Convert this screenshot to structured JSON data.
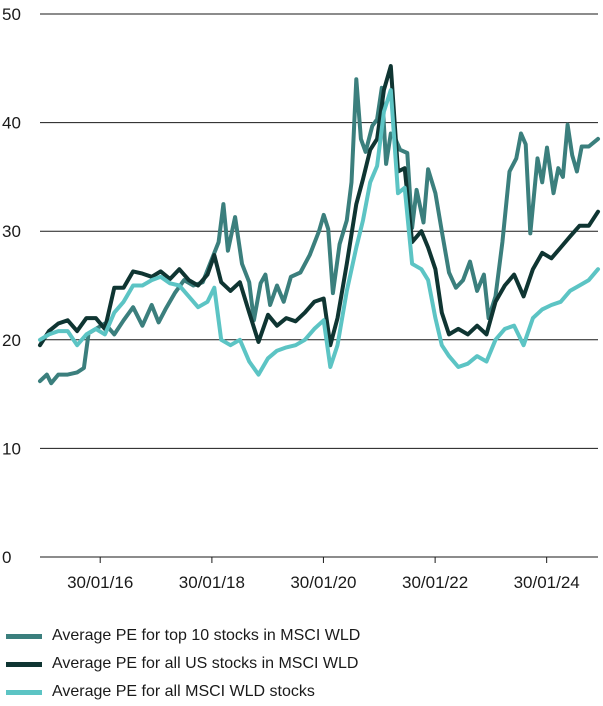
{
  "chart_data": {
    "type": "line",
    "title": "",
    "xlabel": "",
    "ylabel": "",
    "ylim": [
      0,
      50
    ],
    "yticks": [
      0,
      10,
      20,
      30,
      40,
      50
    ],
    "xlim": [
      "2015-01-01",
      "2024-12-31"
    ],
    "xticks": [
      {
        "label": "30/01/16",
        "date": "2016-01-30"
      },
      {
        "label": "30/01/18",
        "date": "2018-01-30"
      },
      {
        "label": "30/01/20",
        "date": "2020-01-30"
      },
      {
        "label": "30/01/22",
        "date": "2022-01-30"
      },
      {
        "label": "30/01/24",
        "date": "2024-01-30"
      }
    ],
    "grid": "horizontal",
    "legend_position": "bottom",
    "series": [
      {
        "name": "Average PE for top 10 stocks in MSCI WLD",
        "color": "#3b7f7d",
        "points": [
          [
            "2015-01-01",
            16.2
          ],
          [
            "2015-02-15",
            16.8
          ],
          [
            "2015-03-15",
            16.0
          ],
          [
            "2015-05-01",
            16.8
          ],
          [
            "2015-07-01",
            16.8
          ],
          [
            "2015-09-01",
            17.0
          ],
          [
            "2015-10-15",
            17.4
          ],
          [
            "2015-11-15",
            20.6
          ],
          [
            "2016-01-01",
            21.0
          ],
          [
            "2016-03-01",
            21.5
          ],
          [
            "2016-05-01",
            20.5
          ],
          [
            "2016-07-01",
            21.8
          ],
          [
            "2016-09-01",
            23.0
          ],
          [
            "2016-11-01",
            21.3
          ],
          [
            "2017-01-01",
            23.2
          ],
          [
            "2017-02-15",
            21.6
          ],
          [
            "2017-04-01",
            22.8
          ],
          [
            "2017-06-01",
            24.3
          ],
          [
            "2017-08-01",
            25.5
          ],
          [
            "2017-10-01",
            25.0
          ],
          [
            "2017-12-01",
            25.3
          ],
          [
            "2018-02-01",
            27.5
          ],
          [
            "2018-03-15",
            29.0
          ],
          [
            "2018-04-15",
            32.5
          ],
          [
            "2018-05-15",
            28.2
          ],
          [
            "2018-07-01",
            31.3
          ],
          [
            "2018-08-15",
            27.0
          ],
          [
            "2018-10-01",
            25.3
          ],
          [
            "2018-11-01",
            21.8
          ],
          [
            "2018-12-15",
            25.2
          ],
          [
            "2019-01-15",
            26.0
          ],
          [
            "2019-02-15",
            23.2
          ],
          [
            "2019-04-01",
            25.0
          ],
          [
            "2019-05-15",
            23.5
          ],
          [
            "2019-07-01",
            25.8
          ],
          [
            "2019-09-01",
            26.2
          ],
          [
            "2019-11-01",
            27.8
          ],
          [
            "2020-01-01",
            30.0
          ],
          [
            "2020-02-01",
            31.5
          ],
          [
            "2020-03-01",
            30.2
          ],
          [
            "2020-04-01",
            24.3
          ],
          [
            "2020-05-15",
            28.8
          ],
          [
            "2020-07-01",
            31.0
          ],
          [
            "2020-08-01",
            34.5
          ],
          [
            "2020-09-01",
            44.0
          ],
          [
            "2020-10-01",
            38.5
          ],
          [
            "2020-11-01",
            37.3
          ],
          [
            "2020-12-15",
            39.7
          ],
          [
            "2021-01-15",
            40.3
          ],
          [
            "2021-02-15",
            43.2
          ],
          [
            "2021-03-15",
            36.2
          ],
          [
            "2021-04-15",
            39.0
          ],
          [
            "2021-05-15",
            38.5
          ],
          [
            "2021-06-15",
            37.5
          ],
          [
            "2021-08-01",
            37.2
          ],
          [
            "2021-09-01",
            30.3
          ],
          [
            "2021-10-01",
            33.8
          ],
          [
            "2021-11-15",
            30.8
          ],
          [
            "2021-12-15",
            35.7
          ],
          [
            "2022-02-01",
            33.5
          ],
          [
            "2022-03-15",
            30.0
          ],
          [
            "2022-05-01",
            26.2
          ],
          [
            "2022-06-15",
            24.8
          ],
          [
            "2022-08-01",
            25.5
          ],
          [
            "2022-09-15",
            27.2
          ],
          [
            "2022-11-01",
            24.5
          ],
          [
            "2022-12-15",
            26.0
          ],
          [
            "2023-01-15",
            22.0
          ],
          [
            "2023-03-01",
            24.0
          ],
          [
            "2023-04-15",
            29.0
          ],
          [
            "2023-06-01",
            35.5
          ],
          [
            "2023-07-15",
            36.7
          ],
          [
            "2023-08-15",
            39.0
          ],
          [
            "2023-09-15",
            38.0
          ],
          [
            "2023-10-15",
            29.8
          ],
          [
            "2023-12-01",
            36.7
          ],
          [
            "2024-01-01",
            34.5
          ],
          [
            "2024-02-01",
            37.7
          ],
          [
            "2024-03-15",
            33.5
          ],
          [
            "2024-04-15",
            35.8
          ],
          [
            "2024-05-15",
            35.0
          ],
          [
            "2024-06-15",
            39.8
          ],
          [
            "2024-07-15",
            37.0
          ],
          [
            "2024-08-15",
            35.5
          ],
          [
            "2024-09-15",
            37.8
          ],
          [
            "2024-11-01",
            37.8
          ],
          [
            "2024-12-31",
            38.5
          ]
        ]
      },
      {
        "name": "Average PE for all US stocks in MSCI WLD",
        "color": "#0f3532",
        "points": [
          [
            "2015-01-01",
            19.5
          ],
          [
            "2015-03-01",
            20.8
          ],
          [
            "2015-05-01",
            21.5
          ],
          [
            "2015-07-01",
            21.8
          ],
          [
            "2015-09-01",
            20.8
          ],
          [
            "2015-11-01",
            22.0
          ],
          [
            "2016-01-01",
            22.0
          ],
          [
            "2016-03-01",
            21.0
          ],
          [
            "2016-05-01",
            24.8
          ],
          [
            "2016-07-01",
            24.8
          ],
          [
            "2016-09-01",
            26.3
          ],
          [
            "2016-11-01",
            26.1
          ],
          [
            "2017-01-01",
            25.8
          ],
          [
            "2017-03-01",
            26.3
          ],
          [
            "2017-05-01",
            25.6
          ],
          [
            "2017-07-01",
            26.5
          ],
          [
            "2017-09-01",
            25.5
          ],
          [
            "2017-11-01",
            25.0
          ],
          [
            "2018-01-01",
            26.0
          ],
          [
            "2018-02-15",
            27.8
          ],
          [
            "2018-04-01",
            25.3
          ],
          [
            "2018-06-01",
            24.5
          ],
          [
            "2018-08-01",
            25.3
          ],
          [
            "2018-10-01",
            22.5
          ],
          [
            "2018-12-01",
            19.8
          ],
          [
            "2019-02-01",
            22.3
          ],
          [
            "2019-04-01",
            21.3
          ],
          [
            "2019-06-01",
            22.0
          ],
          [
            "2019-08-01",
            21.7
          ],
          [
            "2019-10-01",
            22.5
          ],
          [
            "2019-12-01",
            23.5
          ],
          [
            "2020-02-01",
            23.8
          ],
          [
            "2020-03-15",
            19.5
          ],
          [
            "2020-05-01",
            22.0
          ],
          [
            "2020-07-01",
            27.0
          ],
          [
            "2020-09-01",
            32.5
          ],
          [
            "2020-10-15",
            34.8
          ],
          [
            "2020-12-01",
            37.5
          ],
          [
            "2021-01-15",
            38.5
          ],
          [
            "2021-03-01",
            43.0
          ],
          [
            "2021-04-15",
            45.2
          ],
          [
            "2021-06-01",
            35.5
          ],
          [
            "2021-07-15",
            35.8
          ],
          [
            "2021-09-01",
            29.0
          ],
          [
            "2021-11-01",
            30.0
          ],
          [
            "2021-12-15",
            28.5
          ],
          [
            "2022-02-01",
            26.5
          ],
          [
            "2022-03-15",
            22.5
          ],
          [
            "2022-05-01",
            20.5
          ],
          [
            "2022-07-01",
            21.0
          ],
          [
            "2022-09-01",
            20.5
          ],
          [
            "2022-11-01",
            21.3
          ],
          [
            "2023-01-01",
            20.5
          ],
          [
            "2023-03-01",
            23.5
          ],
          [
            "2023-05-01",
            25.0
          ],
          [
            "2023-07-01",
            26.0
          ],
          [
            "2023-09-01",
            24.0
          ],
          [
            "2023-11-01",
            26.5
          ],
          [
            "2024-01-01",
            28.0
          ],
          [
            "2024-03-01",
            27.5
          ],
          [
            "2024-05-01",
            28.5
          ],
          [
            "2024-07-01",
            29.5
          ],
          [
            "2024-09-01",
            30.5
          ],
          [
            "2024-11-01",
            30.5
          ],
          [
            "2024-12-31",
            31.8
          ]
        ]
      },
      {
        "name": "Average PE for all MSCI WLD stocks",
        "color": "#5cc4c4",
        "points": [
          [
            "2015-01-01",
            20.0
          ],
          [
            "2015-03-01",
            20.5
          ],
          [
            "2015-05-01",
            20.8
          ],
          [
            "2015-07-01",
            20.8
          ],
          [
            "2015-09-01",
            19.5
          ],
          [
            "2015-11-01",
            20.5
          ],
          [
            "2016-01-01",
            21.0
          ],
          [
            "2016-03-01",
            20.5
          ],
          [
            "2016-05-01",
            22.5
          ],
          [
            "2016-07-01",
            23.5
          ],
          [
            "2016-09-01",
            25.0
          ],
          [
            "2016-11-01",
            25.0
          ],
          [
            "2017-01-01",
            25.5
          ],
          [
            "2017-03-01",
            25.8
          ],
          [
            "2017-05-01",
            25.2
          ],
          [
            "2017-07-01",
            25.0
          ],
          [
            "2017-09-01",
            24.0
          ],
          [
            "2017-11-01",
            23.0
          ],
          [
            "2018-01-01",
            23.5
          ],
          [
            "2018-02-15",
            24.8
          ],
          [
            "2018-04-01",
            20.0
          ],
          [
            "2018-06-01",
            19.5
          ],
          [
            "2018-08-01",
            20.0
          ],
          [
            "2018-10-01",
            18.0
          ],
          [
            "2018-12-01",
            16.8
          ],
          [
            "2019-02-01",
            18.3
          ],
          [
            "2019-04-01",
            19.0
          ],
          [
            "2019-06-01",
            19.3
          ],
          [
            "2019-08-01",
            19.5
          ],
          [
            "2019-10-01",
            20.0
          ],
          [
            "2019-12-01",
            21.0
          ],
          [
            "2020-02-01",
            21.8
          ],
          [
            "2020-03-15",
            17.5
          ],
          [
            "2020-05-01",
            19.5
          ],
          [
            "2020-07-01",
            24.5
          ],
          [
            "2020-09-01",
            28.5
          ],
          [
            "2020-10-15",
            31.0
          ],
          [
            "2020-12-01",
            34.5
          ],
          [
            "2021-01-15",
            36.0
          ],
          [
            "2021-03-01",
            41.0
          ],
          [
            "2021-04-15",
            43.0
          ],
          [
            "2021-06-01",
            33.5
          ],
          [
            "2021-07-15",
            34.0
          ],
          [
            "2021-09-01",
            27.0
          ],
          [
            "2021-11-01",
            26.5
          ],
          [
            "2021-12-15",
            25.5
          ],
          [
            "2022-02-01",
            22.0
          ],
          [
            "2022-03-15",
            19.5
          ],
          [
            "2022-05-01",
            18.5
          ],
          [
            "2022-07-01",
            17.5
          ],
          [
            "2022-09-01",
            17.8
          ],
          [
            "2022-11-01",
            18.5
          ],
          [
            "2023-01-01",
            18.0
          ],
          [
            "2023-03-01",
            20.0
          ],
          [
            "2023-05-01",
            21.0
          ],
          [
            "2023-07-01",
            21.3
          ],
          [
            "2023-09-01",
            19.5
          ],
          [
            "2023-11-01",
            22.0
          ],
          [
            "2024-01-01",
            22.8
          ],
          [
            "2024-03-01",
            23.2
          ],
          [
            "2024-05-01",
            23.5
          ],
          [
            "2024-07-01",
            24.5
          ],
          [
            "2024-09-01",
            25.0
          ],
          [
            "2024-11-01",
            25.5
          ],
          [
            "2024-12-31",
            26.5
          ]
        ]
      }
    ]
  }
}
